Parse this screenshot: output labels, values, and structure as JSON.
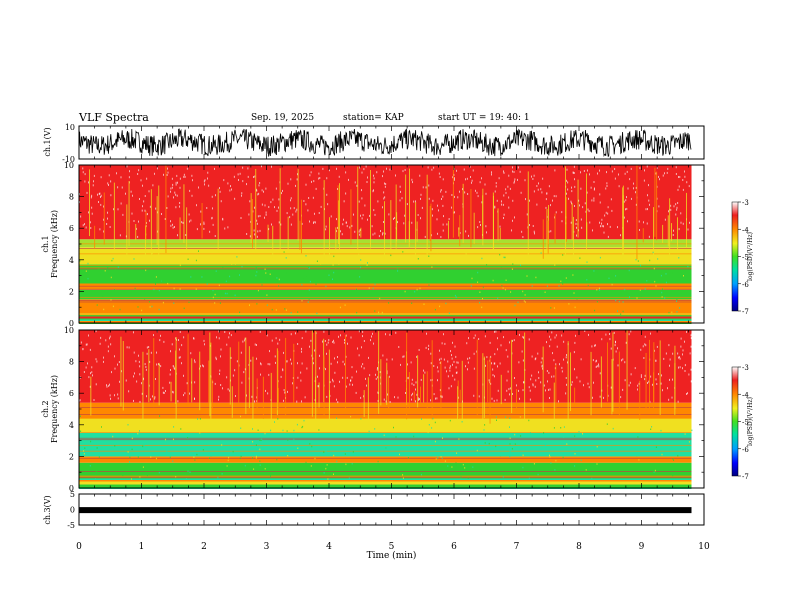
{
  "header": {
    "title": "VLF Spectra",
    "date": "Sep. 19, 2025",
    "station": "station= KAP",
    "start": "start  UT  =    19: 40: 1"
  },
  "chart_data": [
    {
      "type": "line",
      "name": "ch1-waveform",
      "ylabel": "ch.1(V)",
      "ylim": [
        -10,
        10
      ],
      "ytick_labels": [
        "10",
        "-10"
      ],
      "xlim": [
        0,
        10
      ],
      "approx_level": 0,
      "note": "dense black waveform fluctuating roughly between -8 and 7 V"
    },
    {
      "type": "heatmap",
      "name": "ch1-spectrogram",
      "ylabel_top": "ch.1",
      "ylabel": "Frequency (kHz)",
      "ylim": [
        0,
        10
      ],
      "ytick_labels": [
        "0",
        "2",
        "4",
        "6",
        "8",
        "10"
      ],
      "xlim": [
        0,
        9.8
      ],
      "colorbar": {
        "label": "log(PSD)(V²/Hz)",
        "range": [
          -7,
          -3
        ],
        "tick_labels": [
          "-3",
          "-4",
          "-5",
          "-6",
          "-7"
        ]
      },
      "bands": [
        {
          "from_khz": 0.0,
          "to_khz": 0.6,
          "level": "mixed"
        },
        {
          "from_khz": 0.6,
          "to_khz": 1.5,
          "level": "orange"
        },
        {
          "from_khz": 1.5,
          "to_khz": 2.1,
          "level": "green"
        },
        {
          "from_khz": 2.1,
          "to_khz": 2.5,
          "level": "orange"
        },
        {
          "from_khz": 2.5,
          "to_khz": 3.7,
          "level": "green"
        },
        {
          "from_khz": 3.7,
          "to_khz": 4.8,
          "level": "yellow"
        },
        {
          "from_khz": 4.8,
          "to_khz": 5.3,
          "level": "yellow-green"
        },
        {
          "from_khz": 5.3,
          "to_khz": 10.0,
          "level": "red"
        }
      ]
    },
    {
      "type": "heatmap",
      "name": "ch2-spectrogram",
      "ylabel_top": "ch.2",
      "ylabel": "Frequency (kHz)",
      "ylim": [
        0,
        10
      ],
      "ytick_labels": [
        "0",
        "2",
        "4",
        "6",
        "8",
        "10"
      ],
      "xlim": [
        0,
        9.8
      ],
      "colorbar": {
        "label": "log(PSD)(V²/Hz)",
        "range": [
          -7,
          -3
        ],
        "tick_labels": [
          "-3",
          "-4",
          "-5",
          "-6",
          "-7"
        ]
      },
      "bands": [
        {
          "from_khz": 0.0,
          "to_khz": 0.6,
          "level": "mixed"
        },
        {
          "from_khz": 0.6,
          "to_khz": 1.6,
          "level": "green"
        },
        {
          "from_khz": 1.6,
          "to_khz": 2.0,
          "level": "orange"
        },
        {
          "from_khz": 2.0,
          "to_khz": 3.5,
          "level": "cyan"
        },
        {
          "from_khz": 3.5,
          "to_khz": 4.4,
          "level": "yellow"
        },
        {
          "from_khz": 4.4,
          "to_khz": 5.4,
          "level": "orange"
        },
        {
          "from_khz": 5.4,
          "to_khz": 10.0,
          "level": "red"
        }
      ]
    },
    {
      "type": "line",
      "name": "ch3-waveform",
      "ylabel": "ch.3(V)",
      "ylim": [
        -5,
        5
      ],
      "ytick_labels": [
        "5",
        "0",
        "-5"
      ],
      "xlim": [
        0,
        9.8
      ],
      "approx_level": -0.2,
      "note": "thick flat black band near 0 V"
    }
  ],
  "xaxis": {
    "label": "Time (min)",
    "ticks": [
      0,
      1,
      2,
      3,
      4,
      5,
      6,
      7,
      8,
      9,
      10
    ]
  },
  "colors": {
    "red": "#ee2222",
    "orange": "#ff8800",
    "yellow": "#f0e020",
    "yellowgreen": "#a8e030",
    "green": "#30d030",
    "cyan": "#20e0a0",
    "white": "#ffffff"
  }
}
